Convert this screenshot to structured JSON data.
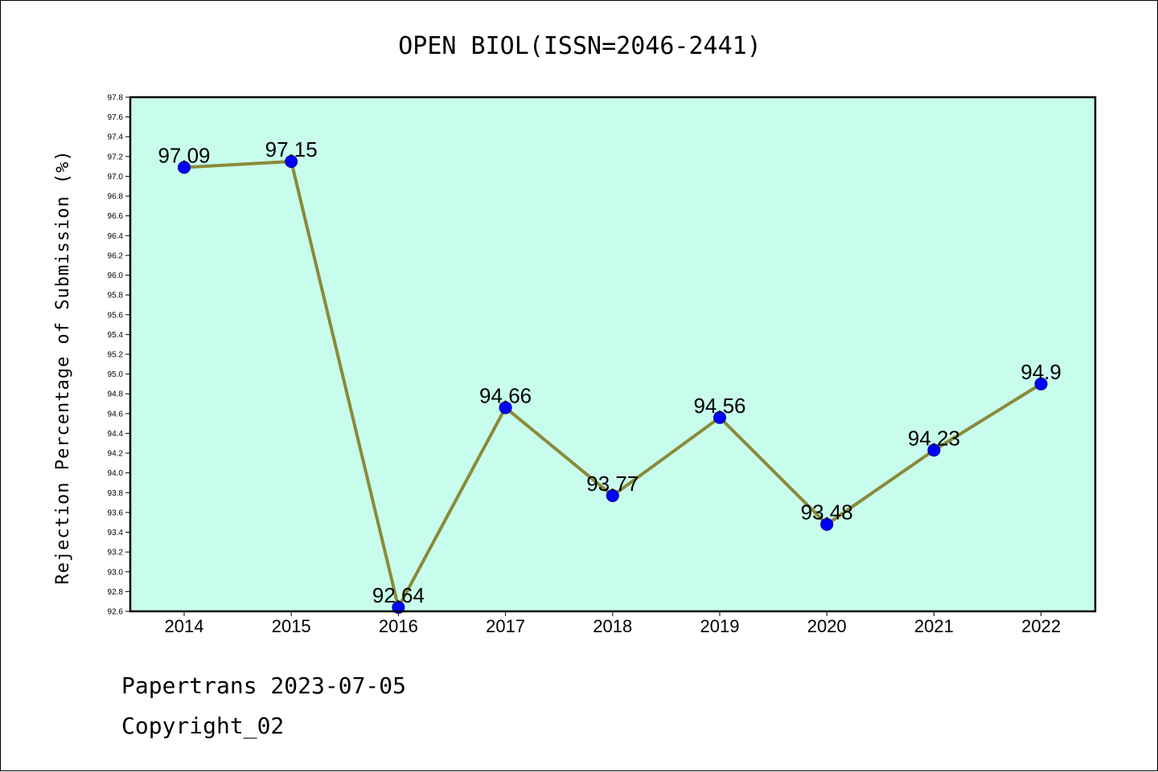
{
  "chart_data": {
    "type": "line",
    "title": "OPEN BIOL(ISSN=2046-2441)",
    "xlabel": "",
    "ylabel": "Rejection Percentage of Submission (%)",
    "categories": [
      "2014",
      "2015",
      "2016",
      "2017",
      "2018",
      "2019",
      "2020",
      "2021",
      "2022"
    ],
    "values": [
      97.09,
      97.15,
      92.64,
      94.66,
      93.77,
      94.56,
      93.48,
      94.23,
      94.9
    ],
    "data_labels": [
      "97.09",
      "97.15",
      "92.64",
      "94.66",
      "93.77",
      "94.56",
      "93.48",
      "94.23",
      "94.9"
    ],
    "ylim": [
      92.6,
      97.8
    ],
    "ytick_step": 0.2,
    "grid": false,
    "legend": "none",
    "colors": {
      "plot_background": "#c8fcec",
      "line": "#8b8a3a",
      "marker": "#0000ff",
      "frame": "#000000"
    }
  },
  "footer": {
    "line1": "Papertrans 2023-07-05",
    "line2": "Copyright_02"
  }
}
